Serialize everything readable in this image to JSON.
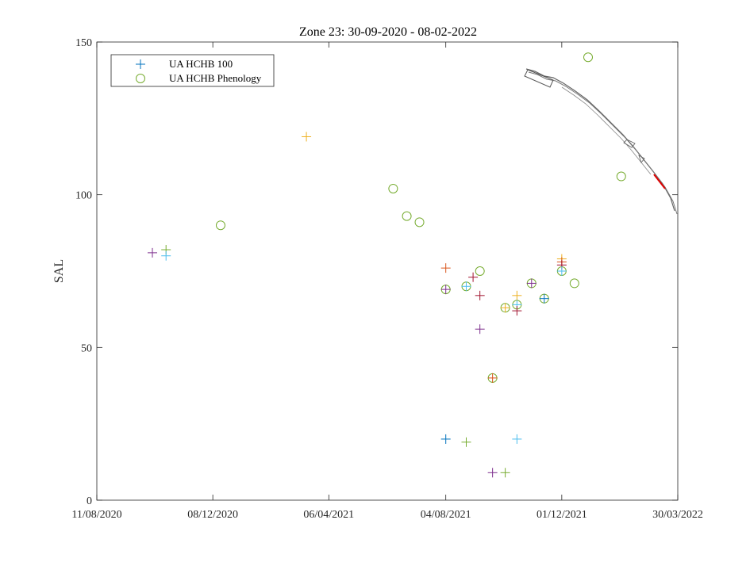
{
  "chart_data": {
    "type": "scatter",
    "title": "Zone 23: 30-09-2020 - 08-02-2022",
    "xlabel": "",
    "ylabel": "SAL",
    "x_axis": "date",
    "xlim": [
      "2020-08-11",
      "2022-03-30"
    ],
    "ylim": [
      0,
      150
    ],
    "x_ticks": [
      "11/08/2020",
      "08/12/2020",
      "06/04/2021",
      "04/08/2021",
      "01/12/2021",
      "30/03/2022"
    ],
    "x_tick_dates": [
      "2020-08-11",
      "2020-12-08",
      "2021-04-06",
      "2021-08-04",
      "2021-12-01",
      "2022-03-30"
    ],
    "y_ticks": [
      0,
      50,
      100,
      150
    ],
    "grid": false,
    "legend_position": "top-left",
    "legend": [
      {
        "label": "UA HCHB 100",
        "marker": "plus",
        "color": "#0072BD"
      },
      {
        "label": "UA HCHB Phenology",
        "marker": "circle",
        "color": "#77AC30"
      }
    ],
    "series": [
      {
        "name": "UA HCHB 100",
        "marker": "plus",
        "points": [
          {
            "x": "2020-10-07",
            "y": 81,
            "color": "#7E2F8E"
          },
          {
            "x": "2020-10-21",
            "y": 82,
            "color": "#77AC30"
          },
          {
            "x": "2020-10-21",
            "y": 80,
            "color": "#4DBEEE"
          },
          {
            "x": "2021-03-14",
            "y": 119,
            "color": "#EDB120"
          },
          {
            "x": "2021-08-04",
            "y": 76,
            "color": "#D95319"
          },
          {
            "x": "2021-08-04",
            "y": 69,
            "color": "#7E2F8E"
          },
          {
            "x": "2021-08-04",
            "y": 20,
            "color": "#0072BD"
          },
          {
            "x": "2021-08-25",
            "y": 70,
            "color": "#4DBEEE"
          },
          {
            "x": "2021-08-25",
            "y": 19,
            "color": "#77AC30"
          },
          {
            "x": "2021-09-01",
            "y": 73,
            "color": "#A2142F"
          },
          {
            "x": "2021-09-08",
            "y": 67,
            "color": "#A2142F"
          },
          {
            "x": "2021-09-08",
            "y": 56,
            "color": "#7E2F8E"
          },
          {
            "x": "2021-09-21",
            "y": 40,
            "color": "#D95319"
          },
          {
            "x": "2021-09-21",
            "y": 9,
            "color": "#7E2F8E"
          },
          {
            "x": "2021-10-04",
            "y": 63,
            "color": "#EDB120"
          },
          {
            "x": "2021-10-04",
            "y": 9,
            "color": "#77AC30"
          },
          {
            "x": "2021-10-16",
            "y": 67,
            "color": "#EDB120"
          },
          {
            "x": "2021-10-16",
            "y": 64,
            "color": "#4DBEEE"
          },
          {
            "x": "2021-10-16",
            "y": 62,
            "color": "#A2142F"
          },
          {
            "x": "2021-10-16",
            "y": 20,
            "color": "#4DBEEE"
          },
          {
            "x": "2021-10-31",
            "y": 71,
            "color": "#7E2F8E"
          },
          {
            "x": "2021-11-13",
            "y": 66,
            "color": "#0072BD"
          },
          {
            "x": "2021-12-01",
            "y": 79,
            "color": "#EDB120"
          },
          {
            "x": "2021-12-01",
            "y": 78,
            "color": "#D95319"
          },
          {
            "x": "2021-12-01",
            "y": 77,
            "color": "#A2142F"
          },
          {
            "x": "2021-12-01",
            "y": 75,
            "color": "#4DBEEE"
          }
        ]
      },
      {
        "name": "UA HCHB Phenology",
        "marker": "circle",
        "color": "#77AC30",
        "points": [
          {
            "x": "2020-12-16",
            "y": 90
          },
          {
            "x": "2021-06-11",
            "y": 102
          },
          {
            "x": "2021-06-25",
            "y": 93
          },
          {
            "x": "2021-07-08",
            "y": 91
          },
          {
            "x": "2021-08-04",
            "y": 69
          },
          {
            "x": "2021-08-25",
            "y": 70
          },
          {
            "x": "2021-09-08",
            "y": 75
          },
          {
            "x": "2021-09-21",
            "y": 40
          },
          {
            "x": "2021-10-04",
            "y": 63
          },
          {
            "x": "2021-10-16",
            "y": 64
          },
          {
            "x": "2021-10-31",
            "y": 71
          },
          {
            "x": "2021-11-13",
            "y": 66
          },
          {
            "x": "2021-12-01",
            "y": 75
          },
          {
            "x": "2021-12-14",
            "y": 71
          },
          {
            "x": "2021-12-28",
            "y": 145
          },
          {
            "x": "2022-01-31",
            "y": 106
          }
        ]
      }
    ]
  }
}
